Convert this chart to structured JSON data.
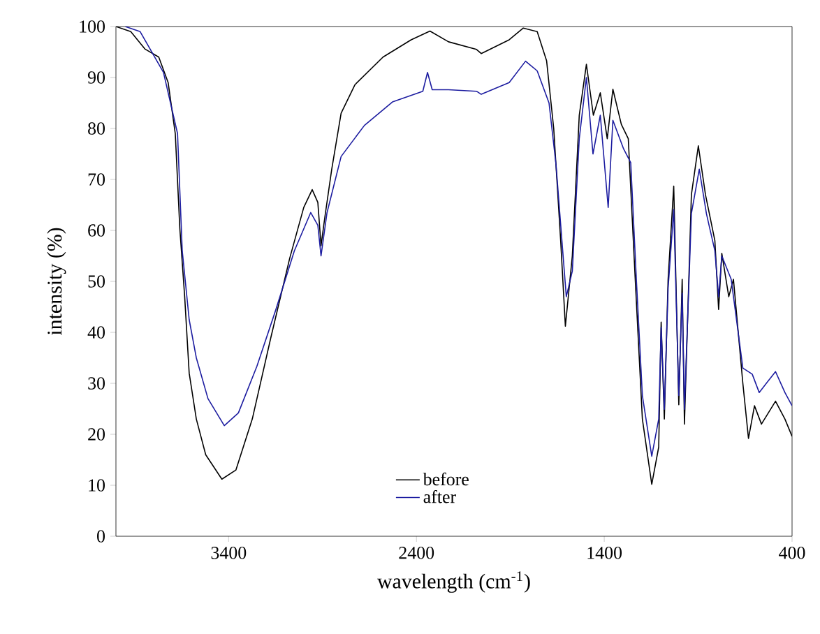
{
  "chart_data": {
    "type": "line",
    "xlabel": "wavelength (cm$^{-1}$)",
    "ylabel": "intensity (%)",
    "xlim": [
      4000,
      400
    ],
    "ylim": [
      0,
      100
    ],
    "xticks": [
      3400,
      2400,
      1400,
      400
    ],
    "yticks": [
      0,
      10,
      20,
      30,
      40,
      50,
      60,
      70,
      80,
      90,
      100
    ],
    "grid": false,
    "legend": "bottom",
    "marker": "none",
    "line_style": "solid",
    "series": [
      {
        "name": "before",
        "color": "#000000",
        "x": [
          4000,
          3921,
          3846,
          3772,
          3722,
          3684,
          3660,
          3634,
          3610,
          3572,
          3522,
          3436,
          3361,
          3274,
          3175,
          3075,
          3000,
          2955,
          2925,
          2908,
          2888,
          2851,
          2801,
          2727,
          2578,
          2428,
          2328,
          2229,
          2080,
          2055,
          1906,
          1831,
          1757,
          1707,
          1669,
          1632,
          1607,
          1570,
          1533,
          1495,
          1458,
          1421,
          1384,
          1354,
          1309,
          1272,
          1235,
          1197,
          1147,
          1110,
          1097,
          1080,
          1060,
          1030,
          1003,
          985,
          973,
          936,
          899,
          861,
          811,
          791,
          774,
          737,
          712,
          662,
          632,
          600,
          563,
          488,
          438,
          400
        ],
        "values": [
          100,
          99,
          95.6,
          94,
          89,
          79,
          60.5,
          47,
          32,
          23,
          16,
          11.2,
          13,
          23,
          39,
          54.5,
          64.5,
          68,
          65.5,
          57,
          62.5,
          72,
          83,
          88.6,
          94,
          97.4,
          99.1,
          97,
          95.5,
          94.7,
          97.4,
          99.7,
          99,
          93.3,
          80,
          58,
          41.2,
          55,
          82.6,
          92.6,
          82.6,
          87,
          78,
          87.7,
          80.8,
          78,
          50.4,
          23,
          10.2,
          17.5,
          42,
          23,
          50.4,
          68.7,
          25.8,
          50.4,
          22,
          67,
          76.6,
          67,
          58,
          44.5,
          55.5,
          47,
          50.4,
          30,
          19.2,
          25.6,
          22,
          26.5,
          23,
          19.6
        ]
      },
      {
        "name": "after",
        "color": "#1c1ca0",
        "x": [
          3950,
          3871,
          3747,
          3672,
          3647,
          3610,
          3572,
          3510,
          3423,
          3348,
          3249,
          3149,
          3050,
          2963,
          2925,
          2908,
          2876,
          2801,
          2677,
          2528,
          2366,
          2341,
          2316,
          2229,
          2080,
          2055,
          1906,
          1819,
          1757,
          1694,
          1657,
          1619,
          1602,
          1570,
          1533,
          1495,
          1460,
          1421,
          1379,
          1354,
          1297,
          1259,
          1229,
          1197,
          1147,
          1110,
          1097,
          1080,
          1060,
          1030,
          1003,
          985,
          973,
          936,
          894,
          856,
          811,
          791,
          774,
          724,
          662,
          612,
          575,
          537,
          488,
          438,
          400
        ],
        "values": [
          100,
          99,
          91,
          79,
          56,
          42.5,
          35,
          27,
          21.7,
          24.2,
          33.4,
          44.4,
          56,
          63.5,
          61,
          55,
          63.5,
          74.5,
          80.6,
          85.2,
          87.3,
          91,
          87.6,
          87.6,
          87.3,
          86.7,
          89,
          93.2,
          91.3,
          85,
          73,
          55,
          47,
          52,
          78,
          90,
          75,
          82.6,
          64.5,
          81.6,
          76,
          73.3,
          50.4,
          27.6,
          15.7,
          23,
          41,
          24.9,
          48.6,
          64.1,
          27.6,
          47.7,
          24.9,
          63.3,
          72,
          63.3,
          56,
          47,
          55,
          50.4,
          33,
          31.8,
          28.2,
          30,
          32.3,
          28.2,
          25.6
        ]
      }
    ]
  }
}
